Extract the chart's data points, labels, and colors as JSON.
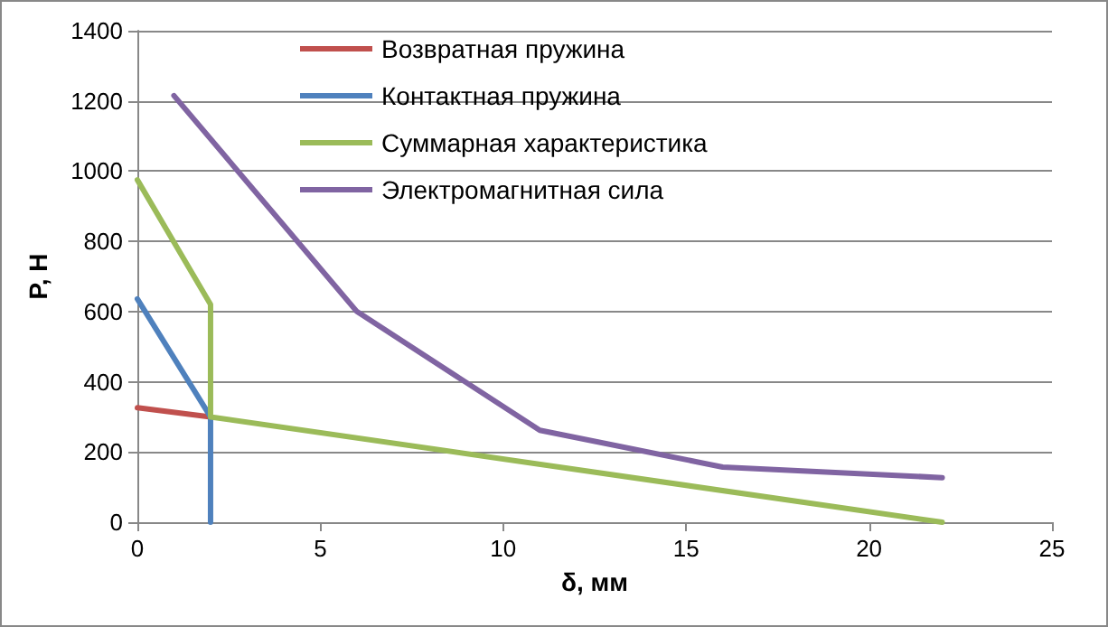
{
  "chart_data": {
    "type": "line",
    "xlabel": "δ, мм",
    "ylabel": "P, Н",
    "xlim": [
      0,
      25
    ],
    "xticks": [
      0,
      5,
      10,
      15,
      20,
      25
    ],
    "ylim": [
      0,
      1400
    ],
    "yticks": [
      0,
      200,
      400,
      600,
      800,
      1000,
      1200,
      1400
    ],
    "grid": "y",
    "legend": "top",
    "marker": "none",
    "line_style": "solid",
    "series": [
      {
        "name": "Возвратная пружина",
        "color": "#c0504d",
        "x": [
          0,
          2
        ],
        "values": [
          326,
          300
        ]
      },
      {
        "name": "Контактная пружина",
        "color": "#4f81bd",
        "x": [
          0,
          2,
          2
        ],
        "values": [
          636,
          300,
          0
        ]
      },
      {
        "name": "Суммарная характеристика",
        "color": "#9bbb59",
        "x": [
          0,
          2,
          2,
          22
        ],
        "values": [
          975,
          620,
          300,
          0
        ]
      },
      {
        "name": "Электромагнитная сила",
        "color": "#8064a2",
        "x": [
          1,
          6,
          11,
          16,
          22
        ],
        "values": [
          1215,
          600,
          262,
          157,
          127
        ]
      }
    ]
  }
}
